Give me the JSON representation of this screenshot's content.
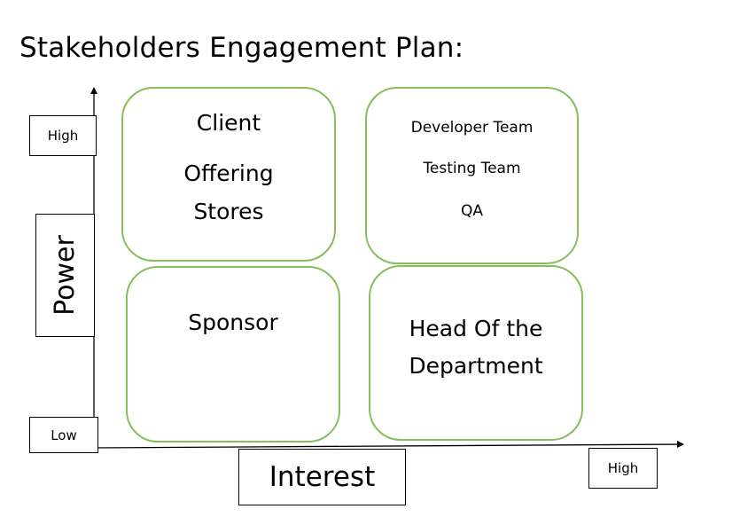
{
  "title": "Stakeholders Engagement Plan:",
  "axes": {
    "y_label": "Power",
    "x_label": "Interest",
    "y_high": "High",
    "y_low": "Low",
    "x_high": "High"
  },
  "quadrants": {
    "high_power_low_interest": [
      "Client",
      "Offering",
      "Stores"
    ],
    "high_power_high_interest": [
      "Developer Team",
      "Testing Team",
      "QA"
    ],
    "low_power_low_interest": [
      "Sponsor"
    ],
    "low_power_high_interest": [
      "Head Of the",
      "Department"
    ]
  },
  "colors": {
    "quadrant_border": "#86be5c",
    "axis": "#000000"
  }
}
